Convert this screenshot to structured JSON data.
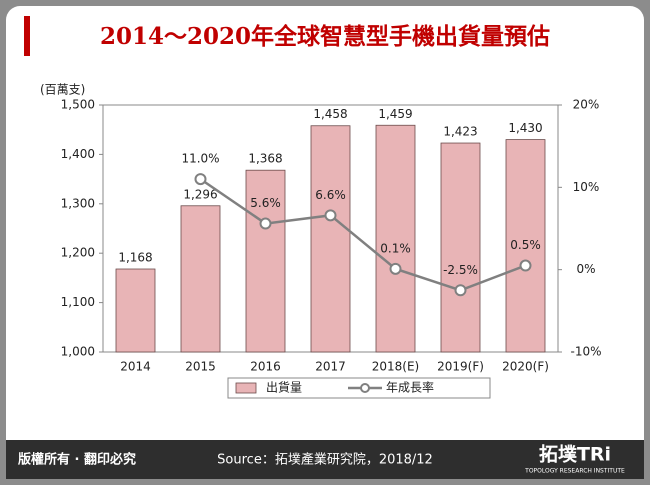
{
  "chart_data": {
    "type": "bar-line",
    "title": "2014～2020年全球智慧型手機出貨量預估",
    "y_label": "(百萬支)",
    "categories": [
      "2014",
      "2015",
      "2016",
      "2017",
      "2018(E)",
      "2019(F)",
      "2020(F)"
    ],
    "series": [
      {
        "name": "出貨量",
        "type": "bar",
        "color": "#e8b4b6",
        "values": [
          1168,
          1296,
          1368,
          1458,
          1459,
          1423,
          1430
        ],
        "value_labels": [
          "1,168",
          "1,296",
          "1,368",
          "1,458",
          "1,459",
          "1,423",
          "1,430"
        ]
      },
      {
        "name": "年成長率",
        "type": "line",
        "axis": "y2",
        "color": "#808080",
        "values": [
          null,
          11.0,
          5.6,
          6.6,
          0.1,
          -2.5,
          0.5
        ],
        "value_labels": [
          null,
          "11.0%",
          "5.6%",
          "6.6%",
          "0.1%",
          "-2.5%",
          "0.5%"
        ]
      }
    ],
    "ylim": [
      1000,
      1500
    ],
    "yticks": [
      {
        "value": 1000,
        "label": "1,000"
      },
      {
        "value": 1100,
        "label": "1,100"
      },
      {
        "value": 1200,
        "label": "1,200"
      },
      {
        "value": 1300,
        "label": "1,300"
      },
      {
        "value": 1400,
        "label": "1,400"
      },
      {
        "value": 1500,
        "label": "1,500"
      }
    ],
    "y2lim": [
      -10,
      20
    ],
    "y2ticks": [
      {
        "value": -10,
        "label": "-10%"
      },
      {
        "value": 0,
        "label": "0%"
      },
      {
        "value": 10,
        "label": "10%"
      },
      {
        "value": 20,
        "label": "20%"
      }
    ],
    "legend": "bottom"
  },
  "footer": {
    "copyright": "版權所有 · 翻印必究",
    "source": "Source：拓墣產業研究院，2018/12",
    "logo": "拓墣TRi",
    "logo_sub": "TOPOLOGY RESEARCH INSTITUTE"
  }
}
